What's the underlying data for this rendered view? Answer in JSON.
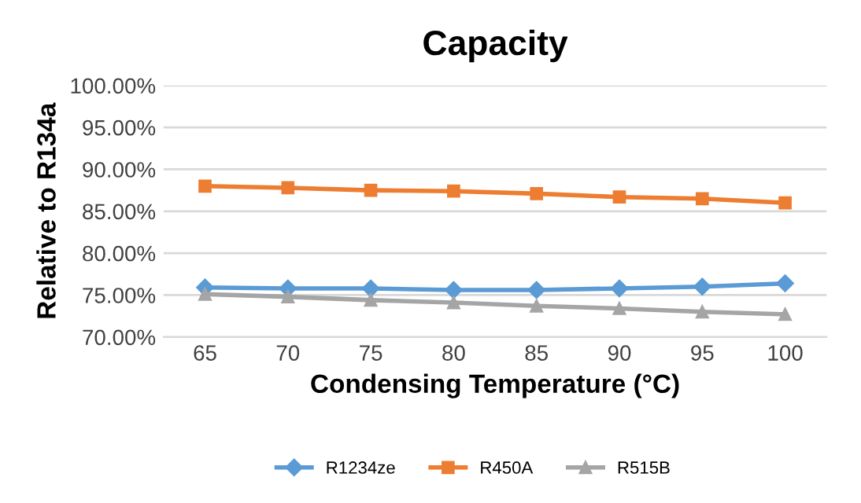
{
  "chart_data": {
    "type": "line",
    "title": "Capacity",
    "xlabel": "Condensing Temperature (°C)",
    "ylabel": "Relative to R134a",
    "categories": [
      "65",
      "70",
      "75",
      "80",
      "85",
      "90",
      "95",
      "100"
    ],
    "series": [
      {
        "name": "R1234ze",
        "color": "#5b9bd5",
        "marker": "diamond",
        "values": [
          75.9,
          75.8,
          75.8,
          75.6,
          75.6,
          75.8,
          76.0,
          76.4
        ]
      },
      {
        "name": "R450A",
        "color": "#ed7d31",
        "marker": "square",
        "values": [
          88.0,
          87.8,
          87.5,
          87.4,
          87.1,
          86.7,
          86.5,
          86.0
        ]
      },
      {
        "name": "R515B",
        "color": "#a5a5a5",
        "marker": "triangle",
        "values": [
          75.1,
          74.8,
          74.4,
          74.1,
          73.7,
          73.4,
          73.0,
          72.7
        ]
      }
    ],
    "ylim": [
      70,
      100
    ],
    "yticks": [
      {
        "value": 70,
        "label": "70.00%"
      },
      {
        "value": 75,
        "label": "75.00%"
      },
      {
        "value": 80,
        "label": "80.00%"
      },
      {
        "value": 85,
        "label": "85.00%"
      },
      {
        "value": 90,
        "label": "90.00%"
      },
      {
        "value": 95,
        "label": "95.00%"
      },
      {
        "value": 100,
        "label": "100.00%"
      }
    ],
    "grid": "y",
    "legend": "bottom",
    "line_style": "solid"
  }
}
